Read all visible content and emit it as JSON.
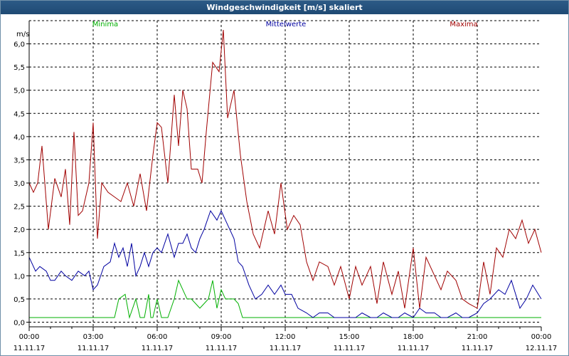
{
  "window": {
    "title": "Windgeschwindigkeit [m/s] skaliert"
  },
  "chart_data": {
    "type": "line",
    "ylabel": "m/s",
    "ylim": [
      -0.1,
      6.5
    ],
    "y_ticks": [
      "0,0",
      "0,5",
      "1,0",
      "1,5",
      "2,0",
      "2,5",
      "3,0",
      "3,5",
      "4,0",
      "4,5",
      "5,0",
      "5,5",
      "6,0"
    ],
    "x_range_hours": [
      0,
      24
    ],
    "x_ticks": [
      {
        "time": "00:00",
        "date": "11.11.17"
      },
      {
        "time": "03:00",
        "date": "11.11.17"
      },
      {
        "time": "06:00",
        "date": "11.11.17"
      },
      {
        "time": "09:00",
        "date": "11.11.17"
      },
      {
        "time": "12:00",
        "date": "11.11.17"
      },
      {
        "time": "15:00",
        "date": "11.11.17"
      },
      {
        "time": "18:00",
        "date": "11.11.17"
      },
      {
        "time": "21:00",
        "date": "11.11.17"
      },
      {
        "time": "00:00",
        "date": "12.11.17"
      }
    ],
    "grid": true,
    "legend_position": "top",
    "series": [
      {
        "name": "Minima",
        "color": "#00b000",
        "x": [
          0,
          4.0,
          4.2,
          4.5,
          4.7,
          5.0,
          5.2,
          5.4,
          5.6,
          5.7,
          5.8,
          6.0,
          6.2,
          6.5,
          6.8,
          7.0,
          7.4,
          7.6,
          8.0,
          8.4,
          8.6,
          8.8,
          9.0,
          9.2,
          9.4,
          9.6,
          9.8,
          10.0,
          24
        ],
        "y": [
          0.1,
          0.1,
          0.5,
          0.6,
          0.1,
          0.5,
          0.1,
          0.1,
          0.6,
          0.1,
          0.1,
          0.5,
          0.1,
          0.1,
          0.5,
          0.9,
          0.5,
          0.5,
          0.3,
          0.5,
          0.9,
          0.3,
          0.7,
          0.5,
          0.5,
          0.5,
          0.4,
          0.1,
          0.1
        ]
      },
      {
        "name": "Mittelwerte",
        "color": "#0000a0",
        "x": [
          0,
          0.3,
          0.5,
          0.8,
          1.0,
          1.2,
          1.5,
          1.7,
          2.0,
          2.3,
          2.6,
          2.8,
          3.0,
          3.2,
          3.5,
          3.8,
          4.0,
          4.2,
          4.4,
          4.6,
          4.8,
          5.0,
          5.2,
          5.4,
          5.6,
          5.8,
          6.0,
          6.2,
          6.5,
          6.8,
          7.0,
          7.2,
          7.4,
          7.6,
          7.8,
          8.0,
          8.2,
          8.5,
          8.8,
          9.0,
          9.3,
          9.6,
          9.8,
          10.0,
          10.3,
          10.6,
          10.9,
          11.2,
          11.5,
          11.8,
          12.0,
          12.3,
          12.6,
          13.0,
          13.3,
          13.6,
          14.0,
          14.3,
          14.6,
          15.0,
          15.3,
          15.6,
          16.0,
          16.3,
          16.6,
          17.0,
          17.3,
          17.6,
          18.0,
          18.3,
          18.6,
          19.0,
          19.3,
          19.6,
          20.0,
          20.3,
          20.6,
          21.0,
          21.3,
          21.6,
          22.0,
          22.3,
          22.6,
          23.0,
          23.3,
          23.6,
          24.0
        ],
        "y": [
          1.4,
          1.1,
          1.2,
          1.1,
          0.9,
          0.9,
          1.1,
          1.0,
          0.9,
          1.1,
          1.0,
          1.1,
          0.7,
          0.8,
          1.2,
          1.3,
          1.7,
          1.4,
          1.6,
          1.2,
          1.7,
          1.0,
          1.2,
          1.5,
          1.2,
          1.5,
          1.6,
          1.5,
          1.9,
          1.4,
          1.7,
          1.7,
          1.9,
          1.6,
          1.5,
          1.8,
          2.0,
          2.4,
          2.2,
          2.4,
          2.1,
          1.8,
          1.3,
          1.2,
          0.8,
          0.5,
          0.6,
          0.8,
          0.6,
          0.8,
          0.6,
          0.6,
          0.3,
          0.2,
          0.1,
          0.2,
          0.2,
          0.1,
          0.1,
          0.1,
          0.1,
          0.2,
          0.1,
          0.1,
          0.2,
          0.1,
          0.1,
          0.2,
          0.1,
          0.3,
          0.2,
          0.2,
          0.1,
          0.1,
          0.2,
          0.1,
          0.1,
          0.2,
          0.4,
          0.5,
          0.7,
          0.6,
          0.9,
          0.3,
          0.5,
          0.8,
          0.5
        ]
      },
      {
        "name": "Maxima",
        "color": "#a00000",
        "x": [
          0,
          0.2,
          0.4,
          0.6,
          0.9,
          1.2,
          1.5,
          1.7,
          1.9,
          2.1,
          2.3,
          2.5,
          2.8,
          3.0,
          3.2,
          3.4,
          3.7,
          4.0,
          4.3,
          4.6,
          4.9,
          5.2,
          5.5,
          5.8,
          6.0,
          6.2,
          6.5,
          6.8,
          7.0,
          7.2,
          7.4,
          7.6,
          7.9,
          8.1,
          8.3,
          8.6,
          8.9,
          9.1,
          9.3,
          9.6,
          9.9,
          10.2,
          10.5,
          10.8,
          11.2,
          11.5,
          11.8,
          12.1,
          12.4,
          12.7,
          13.0,
          13.3,
          13.6,
          14.0,
          14.3,
          14.6,
          15.0,
          15.3,
          15.6,
          16.0,
          16.3,
          16.6,
          17.0,
          17.3,
          17.6,
          18.0,
          18.3,
          18.6,
          19.0,
          19.3,
          19.6,
          20.0,
          20.3,
          20.6,
          21.0,
          21.3,
          21.6,
          21.9,
          22.2,
          22.5,
          22.8,
          23.1,
          23.4,
          23.7,
          24.0
        ],
        "y": [
          3.0,
          2.8,
          3.0,
          3.8,
          2.0,
          3.1,
          2.7,
          3.3,
          2.1,
          4.1,
          2.3,
          2.4,
          3.0,
          4.3,
          1.8,
          3.0,
          2.8,
          2.7,
          2.6,
          3.0,
          2.5,
          3.2,
          2.4,
          3.6,
          4.3,
          4.2,
          3.0,
          4.9,
          3.8,
          5.0,
          4.6,
          3.3,
          3.3,
          3.0,
          4.1,
          5.6,
          5.4,
          6.3,
          4.4,
          5.0,
          3.6,
          2.6,
          1.9,
          1.6,
          2.4,
          1.9,
          3.0,
          2.0,
          2.3,
          2.1,
          1.3,
          0.9,
          1.3,
          1.2,
          0.8,
          1.2,
          0.5,
          1.2,
          0.8,
          1.2,
          0.4,
          1.3,
          0.6,
          1.1,
          0.3,
          1.6,
          0.3,
          1.4,
          1.0,
          0.7,
          1.1,
          0.9,
          0.5,
          0.4,
          0.3,
          1.3,
          0.6,
          1.6,
          1.4,
          2.0,
          1.8,
          2.2,
          1.7,
          2.0,
          1.5
        ]
      }
    ]
  }
}
